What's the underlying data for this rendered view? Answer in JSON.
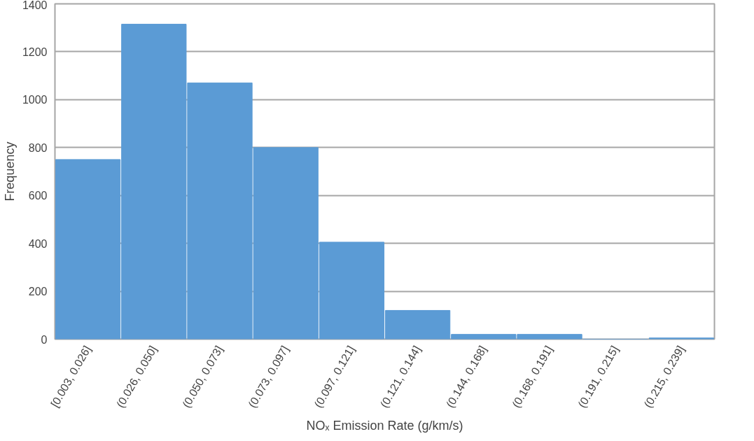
{
  "chart_data": {
    "type": "bar",
    "xlabel": "NOₓ Emission Rate (g/km/s)",
    "ylabel": "Frequency",
    "categories": [
      "[0.003, 0.026]",
      "(0.026, 0.050]",
      "(0.050, 0.073]",
      "(0.073, 0.097]",
      "(0.097, 0.121]",
      "(0.121, 0.144]",
      "(0.144, 0.168]",
      "(0.168, 0.191]",
      "(0.191, 0.215]",
      "(0.215, 0.239]"
    ],
    "values": [
      750,
      1315,
      1070,
      800,
      405,
      120,
      20,
      20,
      0,
      5
    ],
    "color": "#5b9bd5",
    "ylim": [
      0,
      1400
    ],
    "yticks": [
      0,
      200,
      400,
      600,
      800,
      1000,
      1200,
      1400
    ],
    "grid": "y"
  }
}
